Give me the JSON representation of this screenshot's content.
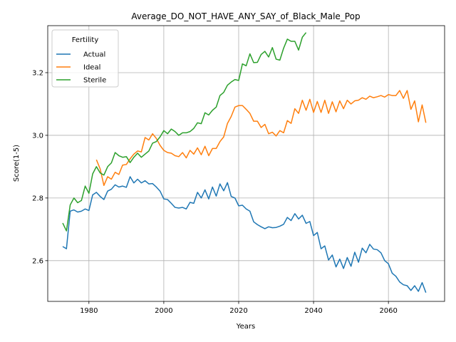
{
  "chart_data": {
    "type": "line",
    "title": "Average_DO_NOT_HAVE_ANY_SAY_of_Black_Male_Pop",
    "xlabel": "Years",
    "ylabel": "Score(1-5)",
    "xlim": [
      1969,
      2075
    ],
    "ylim": [
      2.47,
      3.35
    ],
    "xticks": [
      1980,
      2000,
      2020,
      2040,
      2060
    ],
    "yticks": [
      2.6,
      2.8,
      3.0,
      3.2
    ],
    "ytick_labels": [
      "2.6",
      "2.8",
      "3.0",
      "3.2"
    ],
    "grid": true,
    "legend": {
      "title": "Fertility",
      "placement": "top-left"
    },
    "series": [
      {
        "name": "Actual",
        "color": "#1f77b4",
        "x": [
          1973,
          1974,
          1975,
          1976,
          1977,
          1978,
          1979,
          1980,
          1981,
          1982,
          1983,
          1984,
          1985,
          1986,
          1987,
          1988,
          1989,
          1990,
          1991,
          1992,
          1993,
          1994,
          1995,
          1996,
          1997,
          1998,
          1999,
          2000,
          2001,
          2002,
          2003,
          2004,
          2005,
          2006,
          2007,
          2008,
          2009,
          2010,
          2011,
          2012,
          2013,
          2014,
          2015,
          2016,
          2017,
          2018,
          2019,
          2020,
          2021,
          2022,
          2023,
          2024,
          2025,
          2026,
          2027,
          2028,
          2029,
          2030,
          2031,
          2032,
          2033,
          2034,
          2035,
          2036,
          2037,
          2038,
          2039,
          2040,
          2041,
          2042,
          2043,
          2044,
          2045,
          2046,
          2047,
          2048,
          2049,
          2050,
          2051,
          2052,
          2053,
          2054,
          2055,
          2056,
          2057,
          2058,
          2059,
          2060,
          2061,
          2062,
          2063,
          2064,
          2065,
          2066,
          2067,
          2068,
          2069,
          2070
        ],
        "y": [
          2.645,
          2.638,
          2.758,
          2.762,
          2.755,
          2.758,
          2.765,
          2.76,
          2.81,
          2.818,
          2.805,
          2.795,
          2.822,
          2.828,
          2.842,
          2.835,
          2.838,
          2.834,
          2.868,
          2.848,
          2.86,
          2.848,
          2.855,
          2.845,
          2.846,
          2.835,
          2.822,
          2.797,
          2.795,
          2.783,
          2.77,
          2.768,
          2.77,
          2.765,
          2.786,
          2.783,
          2.818,
          2.8,
          2.826,
          2.797,
          2.835,
          2.806,
          2.845,
          2.823,
          2.849,
          2.805,
          2.8,
          2.775,
          2.777,
          2.765,
          2.758,
          2.724,
          2.715,
          2.708,
          2.702,
          2.708,
          2.705,
          2.706,
          2.71,
          2.716,
          2.738,
          2.728,
          2.75,
          2.733,
          2.745,
          2.719,
          2.725,
          2.68,
          2.69,
          2.638,
          2.647,
          2.602,
          2.618,
          2.58,
          2.605,
          2.575,
          2.61,
          2.582,
          2.627,
          2.595,
          2.64,
          2.625,
          2.652,
          2.637,
          2.635,
          2.625,
          2.6,
          2.59,
          2.56,
          2.55,
          2.532,
          2.523,
          2.52,
          2.505,
          2.52,
          2.502,
          2.53,
          2.498
        ]
      },
      {
        "name": "Ideal",
        "color": "#ff7f0e",
        "x": [
          1982,
          1983,
          1984,
          1985,
          1986,
          1987,
          1988,
          1989,
          1990,
          1991,
          1992,
          1993,
          1994,
          1995,
          1996,
          1997,
          1998,
          1999,
          2000,
          2001,
          2002,
          2003,
          2004,
          2005,
          2006,
          2007,
          2008,
          2009,
          2010,
          2011,
          2012,
          2013,
          2014,
          2015,
          2016,
          2017,
          2018,
          2019,
          2020,
          2021,
          2022,
          2023,
          2024,
          2025,
          2026,
          2027,
          2028,
          2029,
          2030,
          2031,
          2032,
          2033,
          2034,
          2035,
          2036,
          2037,
          2038,
          2039,
          2040,
          2041,
          2042,
          2043,
          2044,
          2045,
          2046,
          2047,
          2048,
          2049,
          2050,
          2051,
          2052,
          2053,
          2054,
          2055,
          2056,
          2057,
          2058,
          2059,
          2060,
          2061,
          2062,
          2063,
          2064,
          2065,
          2066,
          2067,
          2068,
          2069,
          2070
        ],
        "y": [
          2.922,
          2.893,
          2.84,
          2.868,
          2.86,
          2.882,
          2.875,
          2.905,
          2.907,
          2.925,
          2.94,
          2.95,
          2.947,
          2.993,
          2.985,
          3.005,
          2.99,
          2.968,
          2.952,
          2.945,
          2.943,
          2.935,
          2.932,
          2.945,
          2.928,
          2.952,
          2.94,
          2.96,
          2.938,
          2.965,
          2.935,
          2.958,
          2.958,
          2.98,
          2.995,
          3.038,
          3.06,
          3.09,
          3.095,
          3.095,
          3.083,
          3.07,
          3.045,
          3.045,
          3.025,
          3.035,
          3.005,
          3.01,
          2.998,
          3.015,
          3.008,
          3.047,
          3.038,
          3.085,
          3.07,
          3.112,
          3.08,
          3.115,
          3.073,
          3.108,
          3.073,
          3.112,
          3.07,
          3.107,
          3.075,
          3.11,
          3.085,
          3.112,
          3.1,
          3.11,
          3.112,
          3.12,
          3.115,
          3.125,
          3.12,
          3.123,
          3.127,
          3.122,
          3.13,
          3.127,
          3.127,
          3.143,
          3.118,
          3.143,
          3.083,
          3.11,
          3.043,
          3.097,
          3.04
        ]
      },
      {
        "name": "Sterile",
        "color": "#2ca02c",
        "x": [
          1973,
          1974,
          1975,
          1976,
          1977,
          1978,
          1979,
          1980,
          1981,
          1982,
          1983,
          1984,
          1985,
          1986,
          1987,
          1988,
          1989,
          1990,
          1991,
          1992,
          1993,
          1994,
          1995,
          1996,
          1997,
          1998,
          1999,
          2000,
          2001,
          2002,
          2003,
          2004,
          2005,
          2006,
          2007,
          2008,
          2009,
          2010,
          2011,
          2012,
          2013,
          2014,
          2015,
          2016,
          2017,
          2018,
          2019,
          2020,
          2021,
          2022,
          2023,
          2024,
          2025,
          2026,
          2027,
          2028,
          2029,
          2030,
          2031,
          2032,
          2033,
          2034,
          2035,
          2036,
          2037,
          2038
        ],
        "y": [
          2.72,
          2.695,
          2.778,
          2.8,
          2.785,
          2.792,
          2.838,
          2.815,
          2.877,
          2.9,
          2.88,
          2.873,
          2.9,
          2.912,
          2.945,
          2.935,
          2.93,
          2.932,
          2.913,
          2.93,
          2.943,
          2.93,
          2.94,
          2.95,
          2.975,
          2.98,
          2.995,
          3.015,
          3.005,
          3.02,
          3.012,
          3.0,
          3.008,
          3.008,
          3.012,
          3.022,
          3.04,
          3.037,
          3.072,
          3.065,
          3.08,
          3.09,
          3.127,
          3.137,
          3.16,
          3.17,
          3.178,
          3.175,
          3.228,
          3.222,
          3.26,
          3.232,
          3.233,
          3.258,
          3.268,
          3.25,
          3.28,
          3.243,
          3.24,
          3.278,
          3.307,
          3.3,
          3.3,
          3.272,
          3.313,
          3.328
        ]
      }
    ]
  }
}
